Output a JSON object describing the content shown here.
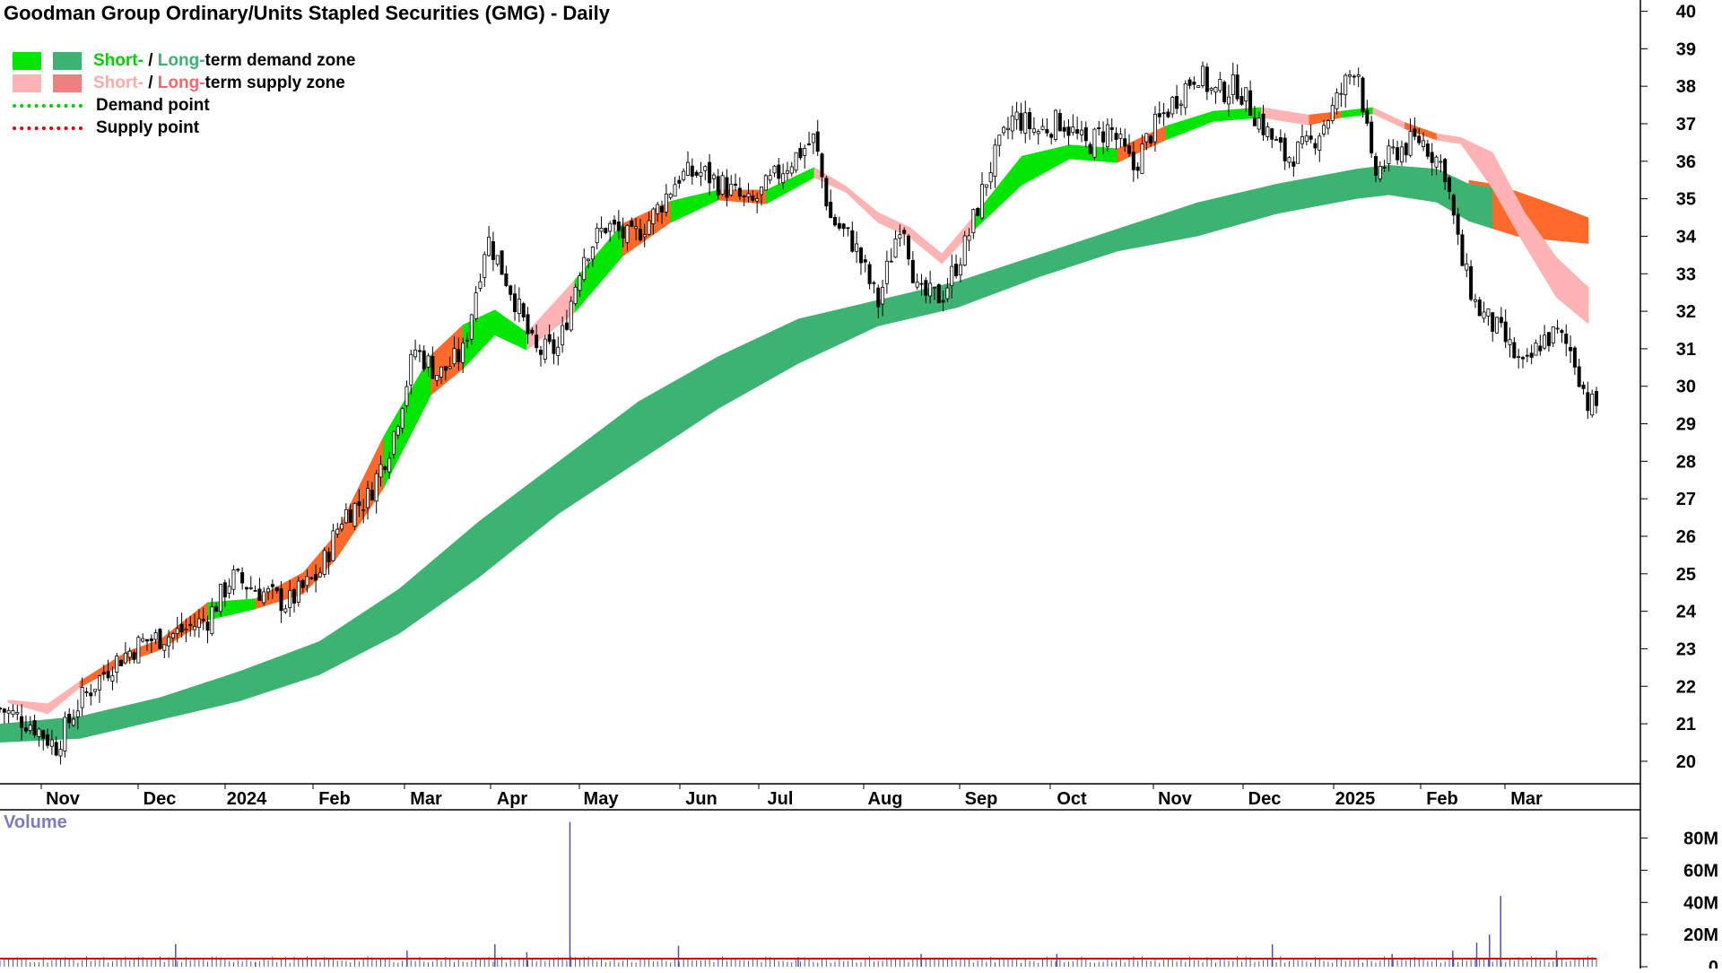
{
  "chart_data": {
    "type": "candlestick",
    "title": "Goodman Group Ordinary/Units Stapled Securities (GMG) - Daily",
    "legend": [
      {
        "text_short": "Short-",
        "text_sep": " / ",
        "text_long": "Long-",
        "text_rest": "term demand zone",
        "short_color": "#00e600",
        "long_color": "#3cb371",
        "label_short_color": "#00d000",
        "label_long_color": "#3cb371"
      },
      {
        "text_short": "Short-",
        "text_sep": " / ",
        "text_long": "Long-",
        "text_rest": "term supply zone",
        "short_color": "#ffb3b3",
        "long_color": "#f08080",
        "label_short_color": "#ffaaaa",
        "label_long_color": "#ee6b6b"
      },
      {
        "text": "Demand point",
        "color": "#00cc00"
      },
      {
        "text": "Supply point",
        "color": "#dd0000"
      }
    ],
    "x_ticks": [
      {
        "label": "Nov",
        "bold": false
      },
      {
        "label": "Dec",
        "bold": false
      },
      {
        "label": "2024",
        "bold": true
      },
      {
        "label": "Feb",
        "bold": false
      },
      {
        "label": "Mar",
        "bold": false
      },
      {
        "label": "Apr",
        "bold": false
      },
      {
        "label": "May",
        "bold": false
      },
      {
        "label": "Jun",
        "bold": false
      },
      {
        "label": "Jul",
        "bold": false
      },
      {
        "label": "Aug",
        "bold": false
      },
      {
        "label": "Sep",
        "bold": false
      },
      {
        "label": "Oct",
        "bold": false
      },
      {
        "label": "Nov",
        "bold": false
      },
      {
        "label": "Dec",
        "bold": false
      },
      {
        "label": "2025",
        "bold": true
      },
      {
        "label": "Feb",
        "bold": false
      },
      {
        "label": "Mar",
        "bold": false
      }
    ],
    "y_ticks": [
      20,
      21,
      22,
      23,
      24,
      25,
      26,
      27,
      28,
      29,
      30,
      31,
      32,
      33,
      34,
      35,
      36,
      37,
      38,
      39,
      40
    ],
    "ylim": [
      19.4,
      40.3
    ],
    "volume": {
      "label": "Volume",
      "ticks": [
        "0",
        "20M",
        "40M",
        "60M",
        "80M"
      ],
      "tick_values": [
        0,
        20,
        40,
        60,
        80
      ],
      "ylim": [
        0,
        92
      ],
      "bar_color": "#5050b0",
      "avg_color": "#dd0000",
      "avg_value": 5,
      "spikes": [
        {
          "x": 0.16,
          "v": 3
        },
        {
          "x": 0.11,
          "v": 14
        },
        {
          "x": 0.255,
          "v": 10
        },
        {
          "x": 0.31,
          "v": 14
        },
        {
          "x": 0.33,
          "v": 9
        },
        {
          "x": 0.357,
          "v": 90
        },
        {
          "x": 0.425,
          "v": 13
        },
        {
          "x": 0.5,
          "v": 6
        },
        {
          "x": 0.577,
          "v": 8
        },
        {
          "x": 0.662,
          "v": 8
        },
        {
          "x": 0.797,
          "v": 14
        },
        {
          "x": 0.872,
          "v": 8
        },
        {
          "x": 0.91,
          "v": 10
        },
        {
          "x": 0.925,
          "v": 15
        },
        {
          "x": 0.94,
          "v": 44
        },
        {
          "x": 0.933,
          "v": 20
        },
        {
          "x": 0.975,
          "v": 10
        }
      ]
    },
    "close_path": [
      [
        0,
        21.4
      ],
      [
        0.02,
        21.0
      ],
      [
        0.035,
        20.4
      ],
      [
        0.05,
        21.6
      ],
      [
        0.07,
        22.6
      ],
      [
        0.09,
        23.2
      ],
      [
        0.11,
        23.4
      ],
      [
        0.13,
        23.8
      ],
      [
        0.145,
        24.9
      ],
      [
        0.16,
        24.6
      ],
      [
        0.18,
        24.2
      ],
      [
        0.2,
        25.0
      ],
      [
        0.215,
        26.6
      ],
      [
        0.23,
        27.0
      ],
      [
        0.245,
        28.5
      ],
      [
        0.26,
        31.0
      ],
      [
        0.275,
        30.3
      ],
      [
        0.29,
        30.9
      ],
      [
        0.305,
        34.0
      ],
      [
        0.32,
        32.6
      ],
      [
        0.335,
        30.9
      ],
      [
        0.35,
        31.0
      ],
      [
        0.365,
        33.5
      ],
      [
        0.38,
        34.3
      ],
      [
        0.395,
        33.9
      ],
      [
        0.41,
        34.6
      ],
      [
        0.425,
        35.6
      ],
      [
        0.44,
        35.7
      ],
      [
        0.455,
        35.3
      ],
      [
        0.47,
        34.8
      ],
      [
        0.49,
        35.8
      ],
      [
        0.51,
        36.6
      ],
      [
        0.52,
        34.5
      ],
      [
        0.535,
        33.8
      ],
      [
        0.55,
        32.2
      ],
      [
        0.565,
        34.6
      ],
      [
        0.575,
        32.4
      ],
      [
        0.59,
        32.4
      ],
      [
        0.605,
        33.8
      ],
      [
        0.62,
        35.8
      ],
      [
        0.635,
        37.2
      ],
      [
        0.65,
        36.8
      ],
      [
        0.665,
        37.1
      ],
      [
        0.68,
        36.4
      ],
      [
        0.695,
        36.9
      ],
      [
        0.71,
        35.8
      ],
      [
        0.72,
        36.7
      ],
      [
        0.735,
        37.6
      ],
      [
        0.75,
        38.4
      ],
      [
        0.76,
        37.8
      ],
      [
        0.775,
        38.0
      ],
      [
        0.79,
        37.0
      ],
      [
        0.805,
        36.1
      ],
      [
        0.82,
        36.4
      ],
      [
        0.835,
        37.4
      ],
      [
        0.85,
        38.7
      ],
      [
        0.86,
        35.6
      ],
      [
        0.875,
        36.3
      ],
      [
        0.89,
        36.6
      ],
      [
        0.905,
        35.8
      ],
      [
        0.915,
        33.4
      ],
      [
        0.925,
        32.1
      ],
      [
        0.94,
        31.4
      ],
      [
        0.955,
        30.4
      ],
      [
        0.965,
        31.2
      ],
      [
        0.975,
        31.4
      ],
      [
        0.985,
        30.9
      ],
      [
        0.995,
        29.5
      ]
    ],
    "long_zone": [
      [
        0,
        20.5,
        21.0
      ],
      [
        0.05,
        20.6,
        21.2
      ],
      [
        0.1,
        21.1,
        21.7
      ],
      [
        0.15,
        21.6,
        22.4
      ],
      [
        0.2,
        22.3,
        23.2
      ],
      [
        0.25,
        23.4,
        24.6
      ],
      [
        0.3,
        24.9,
        26.4
      ],
      [
        0.35,
        26.6,
        28.0
      ],
      [
        0.4,
        28.0,
        29.6
      ],
      [
        0.45,
        29.4,
        30.8
      ],
      [
        0.5,
        30.6,
        31.8
      ],
      [
        0.55,
        31.6,
        32.3
      ],
      [
        0.6,
        32.1,
        32.8
      ],
      [
        0.65,
        32.9,
        33.5
      ],
      [
        0.7,
        33.6,
        34.2
      ],
      [
        0.75,
        34.0,
        34.9
      ],
      [
        0.8,
        34.6,
        35.4
      ],
      [
        0.85,
        35.0,
        35.8
      ],
      [
        0.87,
        35.1,
        35.9
      ],
      [
        0.9,
        34.9,
        35.8
      ],
      [
        0.92,
        34.4,
        35.4
      ],
      [
        0.935,
        34.2,
        35.3
      ]
    ],
    "long_supply": [
      [
        0.92,
        34.5,
        35.5
      ],
      [
        0.935,
        34.2,
        35.4
      ],
      [
        0.95,
        34.0,
        35.2
      ],
      [
        0.97,
        33.9,
        34.9
      ],
      [
        0.995,
        33.8,
        34.5
      ]
    ],
    "short_zone": [
      [
        0.005,
        21.6,
        21.6
      ],
      [
        0.03,
        21.3,
        21.5
      ],
      [
        0.05,
        22.0,
        22.1
      ],
      [
        0.08,
        22.7,
        22.9
      ],
      [
        0.1,
        23.0,
        23.2
      ],
      [
        0.13,
        23.8,
        24.2
      ],
      [
        0.16,
        24.1,
        24.3
      ],
      [
        0.19,
        24.5,
        25.0
      ],
      [
        0.21,
        25.4,
        26.0
      ],
      [
        0.24,
        27.3,
        28.6
      ],
      [
        0.27,
        29.8,
        30.8
      ],
      [
        0.29,
        30.5,
        31.6
      ],
      [
        0.31,
        31.4,
        32.0
      ],
      [
        0.33,
        31.0,
        31.4
      ],
      [
        0.36,
        32.0,
        32.8
      ],
      [
        0.39,
        33.5,
        34.3
      ],
      [
        0.42,
        34.4,
        34.9
      ],
      [
        0.45,
        35.0,
        35.2
      ],
      [
        0.48,
        34.9,
        35.2
      ],
      [
        0.51,
        35.6,
        35.8
      ],
      [
        0.53,
        35.2,
        35.3
      ],
      [
        0.55,
        34.4,
        34.6
      ],
      [
        0.57,
        34.0,
        34.2
      ],
      [
        0.59,
        33.3,
        33.5
      ],
      [
        0.61,
        34.2,
        34.5
      ],
      [
        0.64,
        35.4,
        36.1
      ],
      [
        0.67,
        36.1,
        36.4
      ],
      [
        0.7,
        36.0,
        36.3
      ],
      [
        0.73,
        36.6,
        36.9
      ],
      [
        0.76,
        37.1,
        37.3
      ],
      [
        0.79,
        37.2,
        37.4
      ],
      [
        0.82,
        37.0,
        37.2
      ],
      [
        0.84,
        37.2,
        37.3
      ],
      [
        0.86,
        37.3,
        37.4
      ],
      [
        0.88,
        36.9,
        37.0
      ],
      [
        0.9,
        36.6,
        36.7
      ],
      [
        0.915,
        36.5,
        36.6
      ],
      [
        0.935,
        35.3,
        36.2
      ],
      [
        0.955,
        33.8,
        34.6
      ],
      [
        0.975,
        32.4,
        33.4
      ],
      [
        0.995,
        31.7,
        32.6
      ]
    ]
  }
}
